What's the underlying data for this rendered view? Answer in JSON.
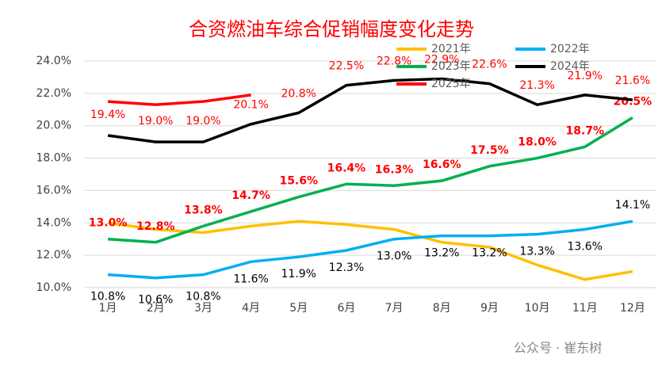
{
  "chart_data": {
    "type": "line",
    "title": "合资燃油车综合促销幅度变化走势",
    "categories": [
      "1月",
      "2月",
      "3月",
      "4月",
      "5月",
      "6月",
      "7月",
      "8月",
      "9月",
      "10月",
      "11月",
      "12月"
    ],
    "ylim": [
      10,
      24
    ],
    "yticks": [
      {
        "value": 10,
        "label": "10.0%"
      },
      {
        "value": 12,
        "label": "12.0%"
      },
      {
        "value": 14,
        "label": "14.0%"
      },
      {
        "value": 16,
        "label": "16.0%"
      },
      {
        "value": 18,
        "label": "18.0%"
      },
      {
        "value": 20,
        "label": "20.0%"
      },
      {
        "value": 22,
        "label": "22.0%"
      },
      {
        "value": 24,
        "label": "24.0%"
      }
    ],
    "grid": true,
    "series": [
      {
        "name": "2021年",
        "color": "#FFC000",
        "values": [
          14.0,
          13.6,
          13.4,
          13.8,
          14.1,
          13.9,
          13.6,
          12.8,
          12.5,
          11.4,
          10.5,
          11.0
        ]
      },
      {
        "name": "2022年",
        "color": "#00B0F0",
        "values": [
          10.8,
          10.6,
          10.8,
          11.6,
          11.9,
          12.3,
          13.0,
          13.2,
          13.2,
          13.3,
          13.6,
          14.1
        ],
        "value_labels": [
          "10.8%",
          "10.6%",
          "10.8%",
          "11.6%",
          "11.9%",
          "12.3%",
          "13.0%",
          "13.2%",
          "13.2%",
          "13.3%",
          "13.6%",
          "14.1%"
        ]
      },
      {
        "name": "2023年",
        "color": "#00B050",
        "values": [
          13.0,
          12.8,
          13.8,
          14.7,
          15.6,
          16.4,
          16.3,
          16.6,
          17.5,
          18.0,
          18.7,
          20.5
        ],
        "value_labels": [
          "13.0%",
          "12.8%",
          "13.8%",
          "14.7%",
          "15.6%",
          "16.4%",
          "16.3%",
          "16.6%",
          "17.5%",
          "18.0%",
          "18.7%",
          "20.5%"
        ]
      },
      {
        "name": "2024年",
        "color": "#000000",
        "values": [
          19.4,
          19.0,
          19.0,
          20.1,
          20.8,
          22.5,
          22.8,
          22.9,
          22.6,
          21.3,
          21.9,
          21.6
        ],
        "value_labels": [
          "19.4%",
          "19.0%",
          "19.0%",
          "20.1%",
          "20.8%",
          "22.5%",
          "22.8%",
          "22.9%",
          "22.6%",
          "21.3%",
          "21.9%",
          "21.6%"
        ]
      },
      {
        "name": "2025年",
        "color": "#FF0000",
        "values": [
          21.5,
          21.3,
          21.5,
          21.9,
          null,
          null,
          null,
          null,
          null,
          null,
          null,
          null
        ]
      }
    ],
    "watermark": "公众号 · 崔东树"
  }
}
